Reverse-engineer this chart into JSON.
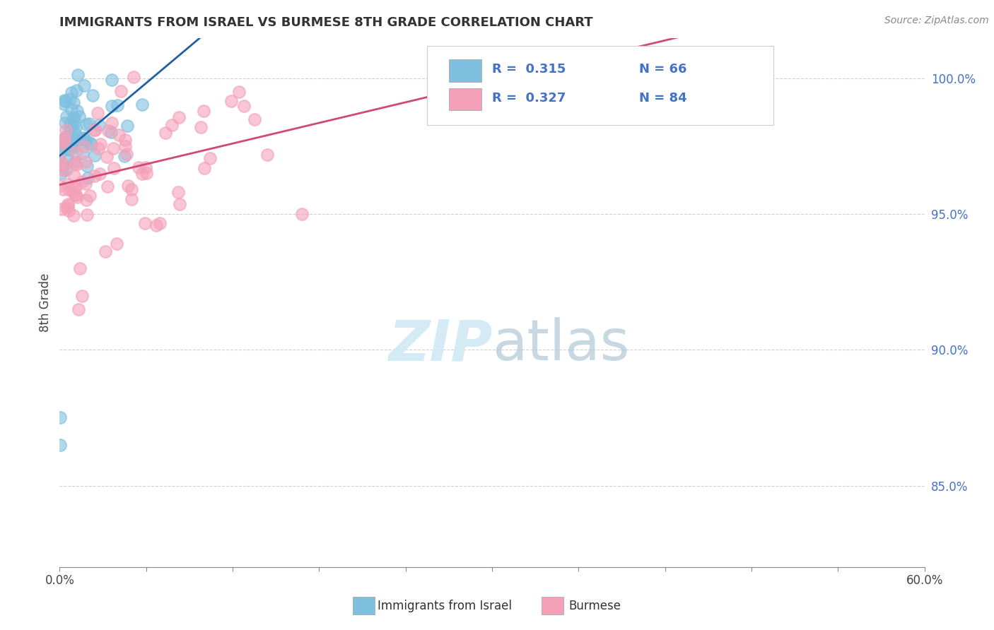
{
  "title": "IMMIGRANTS FROM ISRAEL VS BURMESE 8TH GRADE CORRELATION CHART",
  "source": "Source: ZipAtlas.com",
  "ylabel": "8th Grade",
  "legend_label1": "Immigrants from Israel",
  "legend_label2": "Burmese",
  "R1": 0.315,
  "N1": 66,
  "R2": 0.327,
  "N2": 84,
  "color1": "#7fbfdf",
  "color2": "#f4a0b8",
  "trendline_color1": "#2060a0",
  "trendline_color2": "#d04878",
  "watermark_color": "#d0e8f4",
  "xlim": [
    0.0,
    60.0
  ],
  "ylim": [
    82.0,
    101.5
  ],
  "yticks": [
    85.0,
    90.0,
    95.0,
    100.0
  ],
  "ytick_labels": [
    "85.0%",
    "90.0%",
    "95.0%",
    "100.0%"
  ],
  "xticks": [
    0,
    6,
    12,
    18,
    24,
    30,
    36,
    42,
    48,
    54,
    60
  ],
  "background_color": "#ffffff",
  "grid_color": "#cccccc"
}
